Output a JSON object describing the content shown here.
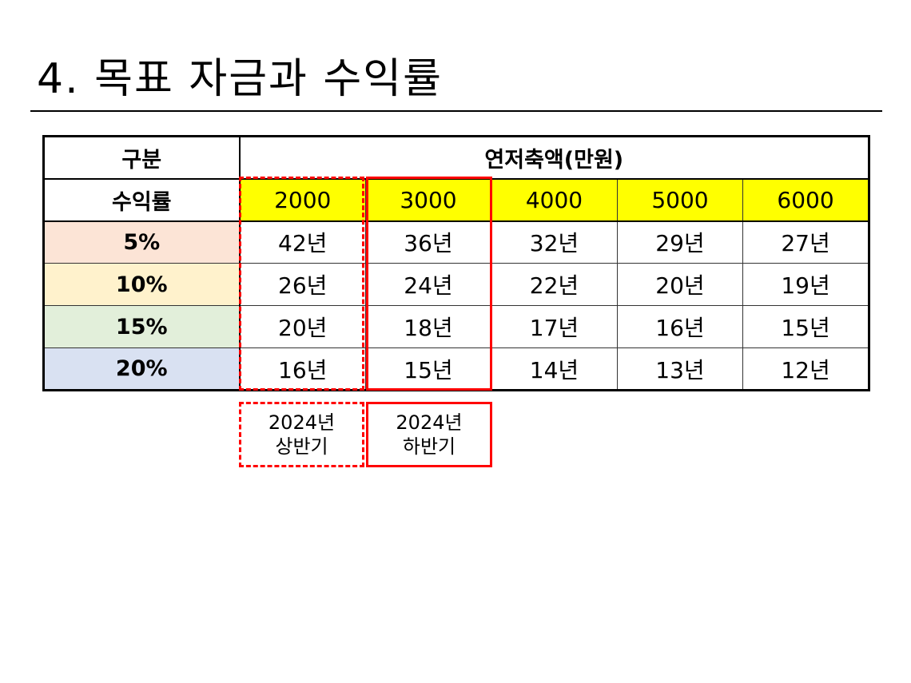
{
  "slide": {
    "title": "4. 목표 자금과 수익률"
  },
  "table": {
    "header_category": "구분",
    "header_group": "연저축액(만원)",
    "header_rate": "수익률",
    "amounts": [
      "2000",
      "3000",
      "4000",
      "5000",
      "6000"
    ],
    "rows": [
      {
        "rate": "5%",
        "color": "#fce4d6",
        "values": [
          "42년",
          "36년",
          "32년",
          "29년",
          "27년"
        ]
      },
      {
        "rate": "10%",
        "color": "#fff2cc",
        "values": [
          "26년",
          "24년",
          "22년",
          "20년",
          "19년"
        ]
      },
      {
        "rate": "15%",
        "color": "#e2efda",
        "values": [
          "20년",
          "18년",
          "17년",
          "16년",
          "15년"
        ]
      },
      {
        "rate": "20%",
        "color": "#d9e1f2",
        "values": [
          "16년",
          "15년",
          "14년",
          "13년",
          "12년"
        ]
      }
    ],
    "amount_highlight_color": "#ffff00"
  },
  "notes": {
    "first_half": {
      "year": "2024년",
      "period": "상반기"
    },
    "second_half": {
      "year": "2024년",
      "period": "하반기"
    },
    "accent_color": "#ff0000"
  }
}
